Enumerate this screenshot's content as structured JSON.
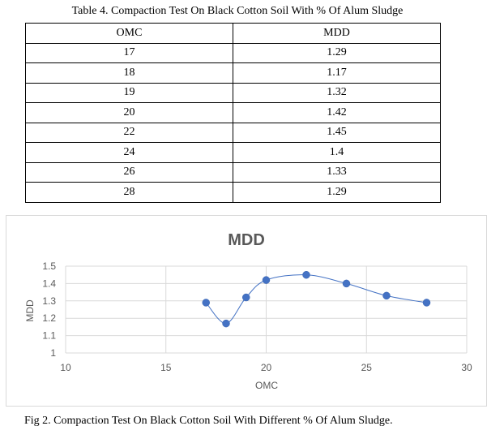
{
  "table": {
    "caption": "Table 4. Compaction Test On Black Cotton Soil With % Of Alum Sludge",
    "headers": [
      "OMC",
      "MDD"
    ],
    "rows": [
      [
        "17",
        "1.29"
      ],
      [
        "18",
        "1.17"
      ],
      [
        "19",
        "1.32"
      ],
      [
        "20",
        "1.42"
      ],
      [
        "22",
        "1.45"
      ],
      [
        "24",
        "1.4"
      ],
      [
        "26",
        "1.33"
      ],
      [
        "28",
        "1.29"
      ]
    ]
  },
  "chart_data": {
    "type": "scatter",
    "title": "MDD",
    "xlabel": "OMC",
    "ylabel": "MDD",
    "x": [
      17,
      18,
      19,
      20,
      22,
      24,
      26,
      28
    ],
    "y": [
      1.29,
      1.17,
      1.32,
      1.42,
      1.45,
      1.4,
      1.33,
      1.29
    ],
    "xlim": [
      10,
      30
    ],
    "ylim": [
      1,
      1.5
    ],
    "xticks": [
      "10",
      "15",
      "20",
      "25",
      "30"
    ],
    "yticks": [
      "1",
      "1.1",
      "1.2",
      "1.3",
      "1.4",
      "1.5"
    ],
    "smooth_line": true,
    "grid": "horizontal and vertical",
    "legend": "none",
    "colors": {
      "series": "#4472C4",
      "grid": "#d9d9d9",
      "text": "#595959"
    }
  },
  "figure_caption": "Fig 2. Compaction Test On Black Cotton Soil With Different % Of Alum Sludge."
}
